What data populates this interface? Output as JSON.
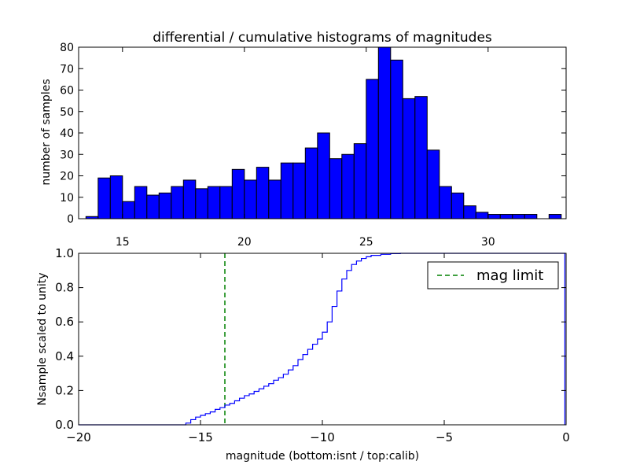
{
  "chart_data": [
    {
      "type": "bar",
      "title": "differential / cumulative histograms of magnitudes",
      "xlabel": "",
      "ylabel": "number of samples",
      "xlim": [
        13.2,
        33.2
      ],
      "ylim": [
        0,
        80
      ],
      "bar_color": "#0000ff",
      "bin_width": 0.5,
      "x_ticks": [
        15,
        20,
        25,
        30
      ],
      "x_tick_labels": [
        "15",
        "20",
        "25",
        "30"
      ],
      "y_ticks": [
        0,
        10,
        20,
        30,
        40,
        50,
        60,
        70,
        80
      ],
      "y_tick_labels": [
        "0",
        "10",
        "20",
        "30",
        "40",
        "50",
        "60",
        "70",
        "80"
      ],
      "bins": [
        {
          "x": 13.75,
          "value": 1
        },
        {
          "x": 14.25,
          "value": 19
        },
        {
          "x": 14.75,
          "value": 20
        },
        {
          "x": 15.25,
          "value": 8
        },
        {
          "x": 15.75,
          "value": 15
        },
        {
          "x": 16.25,
          "value": 11
        },
        {
          "x": 16.75,
          "value": 12
        },
        {
          "x": 17.25,
          "value": 15
        },
        {
          "x": 17.75,
          "value": 18
        },
        {
          "x": 18.25,
          "value": 14
        },
        {
          "x": 18.75,
          "value": 15
        },
        {
          "x": 19.25,
          "value": 15
        },
        {
          "x": 19.75,
          "value": 23
        },
        {
          "x": 20.25,
          "value": 18
        },
        {
          "x": 20.75,
          "value": 24
        },
        {
          "x": 21.25,
          "value": 18
        },
        {
          "x": 21.75,
          "value": 26
        },
        {
          "x": 22.25,
          "value": 26
        },
        {
          "x": 22.75,
          "value": 33
        },
        {
          "x": 23.25,
          "value": 40
        },
        {
          "x": 23.75,
          "value": 28
        },
        {
          "x": 24.25,
          "value": 30
        },
        {
          "x": 24.75,
          "value": 35
        },
        {
          "x": 25.25,
          "value": 65
        },
        {
          "x": 25.75,
          "value": 80
        },
        {
          "x": 26.25,
          "value": 74
        },
        {
          "x": 26.75,
          "value": 56
        },
        {
          "x": 27.25,
          "value": 57
        },
        {
          "x": 27.75,
          "value": 32
        },
        {
          "x": 28.25,
          "value": 15
        },
        {
          "x": 28.75,
          "value": 12
        },
        {
          "x": 29.25,
          "value": 6
        },
        {
          "x": 29.75,
          "value": 3
        },
        {
          "x": 30.25,
          "value": 2
        },
        {
          "x": 30.75,
          "value": 2
        },
        {
          "x": 31.25,
          "value": 2
        },
        {
          "x": 31.75,
          "value": 2
        },
        {
          "x": 32.25,
          "value": 0
        },
        {
          "x": 32.75,
          "value": 2
        }
      ]
    },
    {
      "type": "line",
      "title": "",
      "xlabel": "magnitude (bottom:isnt / top:calib)",
      "ylabel": "Nsample scaled to unity",
      "xlim": [
        -20,
        0
      ],
      "ylim": [
        0,
        1.0
      ],
      "line_color": "#0000ff",
      "x_ticks": [
        -20,
        -15,
        -10,
        -5,
        0
      ],
      "x_tick_labels": [
        "−20",
        "−15",
        "−10",
        "−5",
        "0"
      ],
      "y_ticks": [
        0,
        0.2,
        0.4,
        0.6,
        0.8,
        1.0
      ],
      "y_tick_labels": [
        "0.0",
        "0.2",
        "0.4",
        "0.6",
        "0.8",
        "1.0"
      ],
      "legend": {
        "location": "top-right",
        "entries": [
          {
            "label": "mag limit",
            "style": "dashed",
            "color": "#008000"
          }
        ]
      },
      "mag_limit": {
        "x": -14.0,
        "color": "#008000",
        "style": "dashed"
      },
      "series": [
        {
          "type": "step",
          "x": [
            -20.0,
            -15.6,
            -15.4,
            -15.2,
            -15.0,
            -14.8,
            -14.6,
            -14.4,
            -14.2,
            -14.0,
            -13.8,
            -13.6,
            -13.4,
            -13.2,
            -13.0,
            -12.8,
            -12.6,
            -12.4,
            -12.2,
            -12.0,
            -11.8,
            -11.6,
            -11.4,
            -11.2,
            -11.0,
            -10.8,
            -10.6,
            -10.4,
            -10.2,
            -10.0,
            -9.8,
            -9.6,
            -9.4,
            -9.2,
            -9.0,
            -8.8,
            -8.6,
            -8.4,
            -8.2,
            -8.0,
            -7.6,
            -7.2,
            -6.8,
            -0.05,
            -0.05
          ],
          "y": [
            0.0,
            0.01,
            0.03,
            0.045,
            0.055,
            0.065,
            0.075,
            0.09,
            0.1,
            0.115,
            0.125,
            0.14,
            0.155,
            0.17,
            0.18,
            0.195,
            0.21,
            0.225,
            0.24,
            0.26,
            0.275,
            0.295,
            0.32,
            0.345,
            0.38,
            0.41,
            0.44,
            0.47,
            0.5,
            0.54,
            0.6,
            0.69,
            0.78,
            0.85,
            0.9,
            0.935,
            0.955,
            0.97,
            0.98,
            0.988,
            0.994,
            0.998,
            1.0,
            1.0,
            0.0
          ]
        }
      ]
    }
  ]
}
